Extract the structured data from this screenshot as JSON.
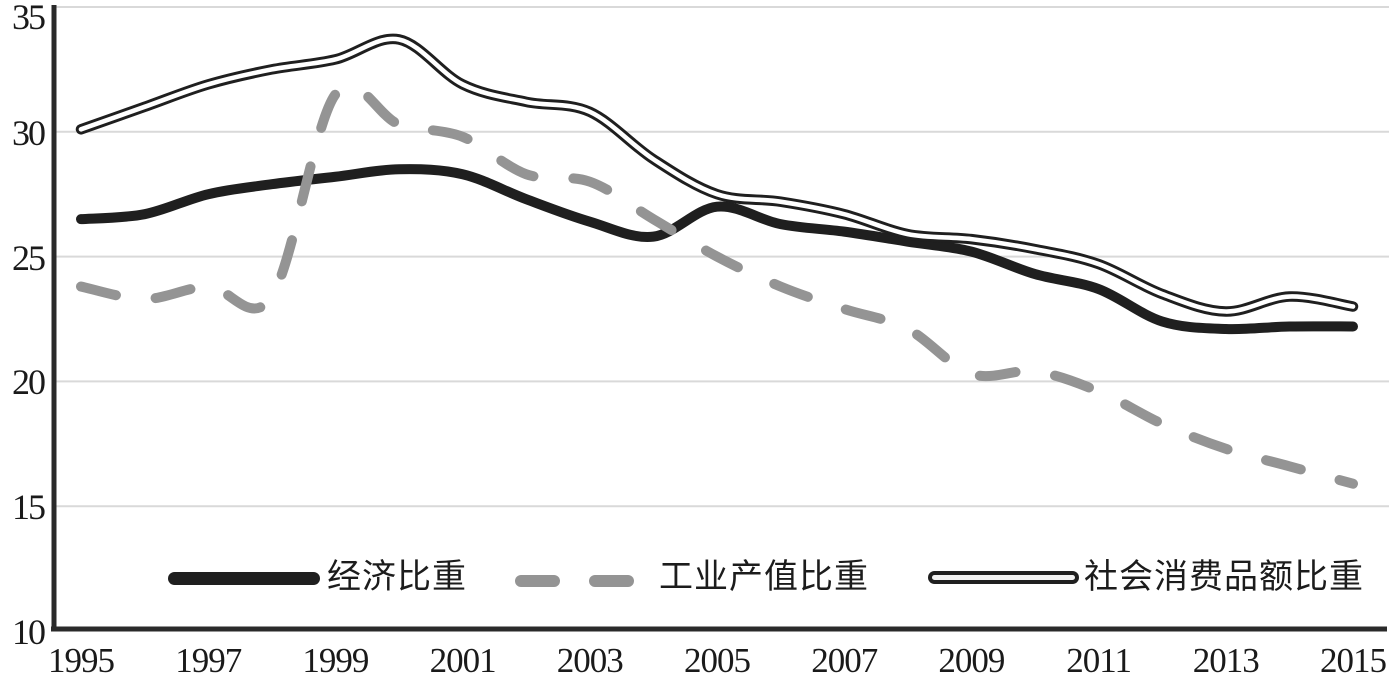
{
  "chart_data": {
    "type": "line",
    "title": "",
    "xlabel": "",
    "ylabel": "",
    "x": [
      1995,
      1996,
      1997,
      1998,
      1999,
      2000,
      2001,
      2002,
      2003,
      2004,
      2005,
      2006,
      2007,
      2008,
      2009,
      2010,
      2011,
      2012,
      2013,
      2014,
      2015
    ],
    "x_axis_tick_labels": [
      "1995",
      "1997",
      "1999",
      "2001",
      "2003",
      "2005",
      "2007",
      "2009",
      "2011",
      "2013",
      "2015"
    ],
    "y_axis_ticks": [
      35,
      30,
      25,
      20,
      15,
      10
    ],
    "ylim": [
      10,
      35
    ],
    "xlim": [
      1995,
      2015
    ],
    "grid": "horizontal gridlines on",
    "legend_position": "bottom inside plot",
    "colors": {
      "solid_line": "#1f1f1f",
      "dashed_line": "#949494",
      "double_line_outline": "#1f1f1f",
      "double_line_core": "#ffffff",
      "gridline": "#d9d9d9",
      "axis": "#2a2a2a",
      "text": "#1a1a1a"
    },
    "series": [
      {
        "name": "经济比重",
        "line_style": "thick solid black",
        "values": [
          26.5,
          26.7,
          27.5,
          27.9,
          28.2,
          28.5,
          28.3,
          27.3,
          26.4,
          25.8,
          27.0,
          26.3,
          26.0,
          25.6,
          25.2,
          24.3,
          23.7,
          22.4,
          22.1,
          22.2,
          22.2
        ]
      },
      {
        "name": "工业产值比重",
        "line_style": "thick gray dashed",
        "values": [
          23.8,
          23.3,
          23.8,
          23.4,
          31.5,
          30.3,
          29.8,
          28.3,
          28.0,
          26.5,
          25.0,
          23.8,
          22.9,
          22.1,
          20.3,
          20.4,
          19.6,
          18.3,
          17.3,
          16.6,
          15.9
        ]
      },
      {
        "name": "社会消费品额比重",
        "line_style": "double outline (black tube with white core)",
        "values": [
          30.1,
          31.0,
          31.9,
          32.5,
          32.9,
          33.7,
          31.9,
          31.2,
          30.8,
          28.9,
          27.5,
          27.2,
          26.7,
          25.9,
          25.7,
          25.3,
          24.7,
          23.5,
          22.8,
          23.4,
          23.0
        ]
      }
    ]
  }
}
